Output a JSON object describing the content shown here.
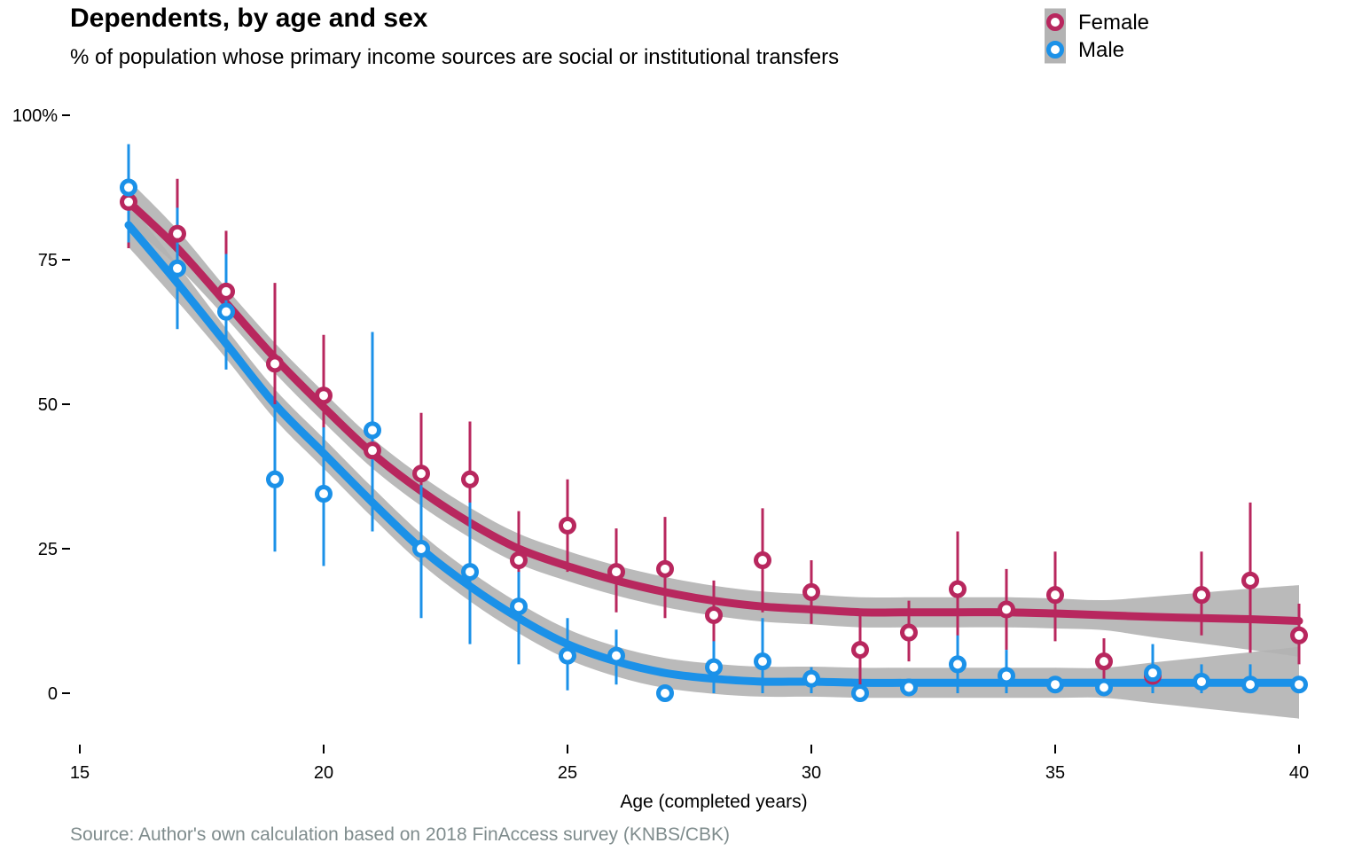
{
  "chart_data": {
    "type": "scatter",
    "title": "Dependents, by age and sex",
    "subtitle": "% of population whose primary income sources are social or institutional transfers",
    "xlabel": "Age (completed years)",
    "ylabel": "",
    "caption": "Source: Author's own calculation based on 2018 FinAccess survey (KNBS/CBK)",
    "xlim": [
      15,
      40
    ],
    "ylim": [
      -10,
      100
    ],
    "x_ticks": [
      15,
      20,
      25,
      30,
      35,
      40
    ],
    "y_ticks": [
      0,
      25,
      50,
      75,
      100
    ],
    "y_tick_labels": [
      "0",
      "25",
      "50",
      "75",
      "100%"
    ],
    "legend_position": "top-right",
    "grid": false,
    "smooth_band": true,
    "series": [
      {
        "name": "Female",
        "color": "#b8275e",
        "x": [
          16,
          17,
          18,
          19,
          20,
          21,
          22,
          23,
          24,
          25,
          26,
          27,
          28,
          29,
          30,
          31,
          32,
          33,
          34,
          35,
          36,
          37,
          38,
          39,
          40
        ],
        "y": [
          85,
          79.5,
          69.5,
          57,
          51.5,
          42,
          38,
          37,
          23,
          29,
          21,
          21.5,
          13.5,
          23,
          17.5,
          7.5,
          10.5,
          18,
          14.5,
          17,
          5.5,
          3,
          17,
          19.5,
          10
        ],
        "ci_low": [
          77,
          71,
          60,
          44,
          42,
          31,
          28,
          27,
          16,
          21,
          14,
          13,
          8,
          14,
          12,
          1,
          5.5,
          8,
          7.5,
          9,
          2,
          0,
          10,
          7,
          5
        ],
        "ci_high": [
          89,
          89,
          80,
          71,
          62,
          53,
          48.5,
          47,
          31.5,
          37,
          28.5,
          30.5,
          19.5,
          32,
          23,
          13.5,
          16,
          28,
          21.5,
          24.5,
          9.5,
          5,
          24.5,
          33,
          15.5
        ],
        "smooth": [
          85,
          77,
          67.5,
          58,
          49.5,
          41.5,
          35,
          29.5,
          25,
          22,
          19.5,
          17.5,
          16,
          15,
          14.5,
          14,
          14,
          14,
          14,
          13.8,
          13.5,
          13.2,
          13,
          12.8,
          12.5
        ]
      },
      {
        "name": "Male",
        "color": "#1b91e8",
        "x": [
          16,
          17,
          18,
          19,
          20,
          21,
          22,
          23,
          24,
          25,
          26,
          27,
          28,
          29,
          30,
          31,
          32,
          33,
          34,
          35,
          36,
          37,
          38,
          39,
          40
        ],
        "y": [
          87.5,
          73.5,
          66,
          37,
          34.5,
          45.5,
          25,
          21,
          15,
          6.5,
          6.5,
          0,
          4.5,
          5.5,
          2.5,
          0,
          1,
          5,
          3,
          1.5,
          1,
          3.5,
          2,
          1.5,
          1.5
        ],
        "ci_low": [
          78,
          63,
          56,
          24.5,
          22,
          28,
          13,
          8.5,
          5,
          0.5,
          1.5,
          0,
          0,
          0,
          0,
          0,
          0,
          0,
          0,
          0,
          0,
          0,
          0,
          0,
          0
        ],
        "ci_high": [
          95,
          84,
          76,
          50,
          46,
          62.5,
          36,
          33,
          21,
          13,
          11,
          0,
          9,
          13,
          4.5,
          0,
          2,
          10,
          7.5,
          2,
          1.5,
          8.5,
          5,
          5,
          3
        ],
        "smooth": [
          81,
          71,
          60.5,
          50,
          41.5,
          33,
          25,
          18.5,
          13,
          8.5,
          5.5,
          3.5,
          2.5,
          2,
          2,
          1.8,
          1.8,
          1.8,
          1.8,
          1.8,
          1.8,
          1.8,
          1.8,
          1.8,
          1.8
        ]
      }
    ]
  }
}
